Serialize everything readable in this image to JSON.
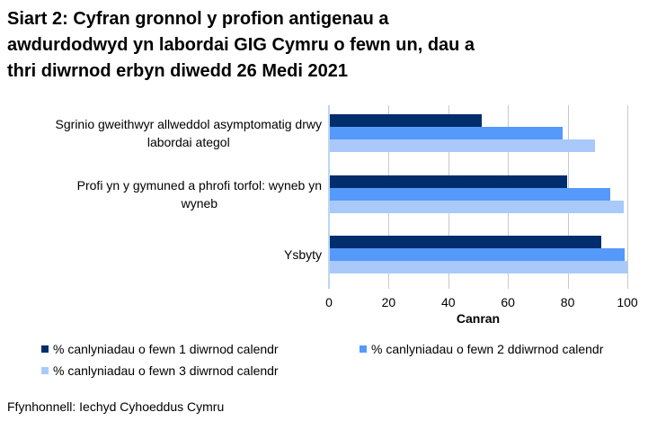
{
  "title": {
    "lines": [
      "Siart 2: Cyfran gronnol y profion antigenau a",
      "awdurdodwyd yn labordai GIG Cymru o fewn un, dau a",
      "thri diwrnod erbyn diwedd 26 Medi 2021"
    ]
  },
  "chart_data": {
    "type": "bar",
    "orientation": "horizontal",
    "title": "Siart 2: Cyfran gronnol y profion antigenau a awdurdodwyd yn labordai GIG Cymru o fewn un, dau a thri diwrnod erbyn diwedd 26 Medi 2021",
    "categories": [
      "Sgrinio gweithwyr allweddol asymptomatig drwy labordai ategol",
      "Profi yn y gymuned a phrofi torfol: wyneb yn wyneb",
      "Ysbyty"
    ],
    "category_label_lines": [
      [
        "Sgrinio gweithwyr allweddol asymptomatig drwy",
        "labordai ategol"
      ],
      [
        "Profi yn y gymuned a phrofi torfol: wyneb yn",
        "wyneb"
      ],
      [
        "Ysbyty"
      ]
    ],
    "series": [
      {
        "name": "% canlyniadau o fewn 1 diwrnod calendr",
        "color": "#002d6b",
        "values": [
          51,
          79.5,
          91
        ]
      },
      {
        "name": "% canlyniadau o fewn 2 ddiwrnod calendr",
        "color": "#5599fa",
        "values": [
          78,
          94,
          98.8
        ]
      },
      {
        "name": "% canlyniadau o fewn 3 diwrnod calendr",
        "color": "#a9c9fb",
        "values": [
          89,
          98.4,
          99.8
        ]
      }
    ],
    "xlabel": "Canran",
    "xlim": [
      0,
      100
    ],
    "xticks": [
      0,
      20,
      40,
      60,
      80,
      100
    ],
    "grid": "vertical",
    "legend_position": "bottom",
    "source": "Ffynhonnell: Iechyd Cyhoeddus Cymru",
    "colors": {
      "gridline": "#c9c9c9",
      "axis_line": "#bdd7ee",
      "background": "#ffffff",
      "text": "#000000"
    }
  }
}
